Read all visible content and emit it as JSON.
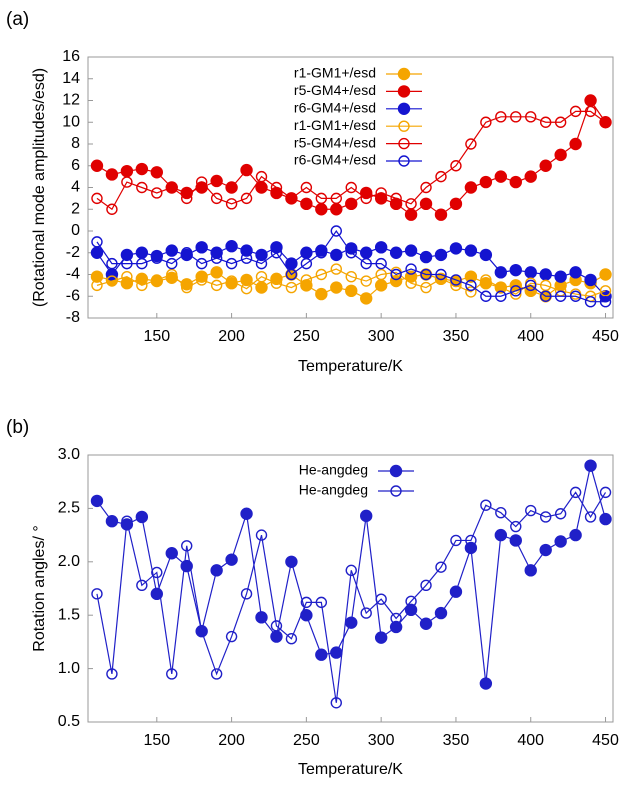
{
  "chart_data": [
    {
      "type": "line",
      "label": "(a)",
      "x_label": "Temperature/K",
      "y_label": "(Rotational mode amplitudes/esd)",
      "xlim": [
        104,
        455
      ],
      "ylim": [
        -8,
        16
      ],
      "xticks": [
        150,
        200,
        250,
        300,
        350,
        400,
        450
      ],
      "yticks": [
        -8,
        -6,
        -4,
        -2,
        0,
        2,
        4,
        6,
        8,
        10,
        12,
        14,
        16
      ],
      "grid": false,
      "legend": "top",
      "x": [
        110,
        120,
        130,
        140,
        150,
        160,
        170,
        180,
        190,
        200,
        210,
        220,
        230,
        240,
        250,
        260,
        270,
        280,
        290,
        300,
        310,
        320,
        330,
        340,
        350,
        360,
        370,
        380,
        390,
        400,
        410,
        420,
        430,
        440,
        450
      ],
      "series": [
        {
          "name": "r1-GM1+/esd",
          "color": "#f5a500",
          "marker": "filled",
          "values": [
            -4.2,
            -4.5,
            -4.8,
            -4.4,
            -4.6,
            -4.3,
            -4.9,
            -4.2,
            -3.8,
            -4.8,
            -4.5,
            -5.2,
            -4.4,
            -4.0,
            -5.0,
            -5.8,
            -5.2,
            -5.5,
            -6.2,
            -5.0,
            -4.6,
            -4.2,
            -4.0,
            -4.4,
            -4.6,
            -4.2,
            -4.8,
            -5.2,
            -5.0,
            -5.5,
            -6.0,
            -5.0,
            -4.5,
            -4.8,
            -4.0
          ]
        },
        {
          "name": "r5-GM4+/esd",
          "color": "#e00000",
          "marker": "filled",
          "values": [
            6.0,
            5.2,
            5.5,
            5.7,
            5.4,
            4.0,
            3.5,
            4.0,
            4.6,
            4.0,
            5.6,
            4.0,
            3.5,
            3.0,
            2.5,
            2.0,
            2.0,
            2.5,
            3.5,
            3.0,
            2.5,
            1.5,
            2.5,
            1.5,
            2.5,
            4.0,
            4.5,
            5.0,
            4.5,
            5.0,
            6.0,
            7.0,
            8.0,
            12.0,
            10.0
          ]
        },
        {
          "name": "r6-GM4+/esd",
          "color": "#1414d0",
          "marker": "filled",
          "values": [
            -2.0,
            -4.0,
            -2.2,
            -2.0,
            -2.3,
            -1.8,
            -2.2,
            -1.5,
            -2.0,
            -1.4,
            -1.8,
            -2.2,
            -1.5,
            -3.0,
            -2.0,
            -1.8,
            -2.2,
            -1.6,
            -2.0,
            -1.5,
            -2.0,
            -1.8,
            -2.4,
            -2.2,
            -1.6,
            -1.8,
            -2.2,
            -3.8,
            -3.6,
            -3.8,
            -4.0,
            -4.2,
            -3.8,
            -4.5,
            -6.0
          ]
        },
        {
          "name": "r1-GM1+/esd",
          "color": "#f5a500",
          "marker": "open",
          "values": [
            -5.0,
            -4.6,
            -4.2,
            -5.0,
            -4.5,
            -4.0,
            -5.2,
            -4.5,
            -5.0,
            -4.6,
            -5.3,
            -4.2,
            -4.8,
            -5.2,
            -4.5,
            -4.0,
            -3.5,
            -4.2,
            -4.6,
            -4.0,
            -3.8,
            -4.8,
            -5.2,
            -4.4,
            -5.0,
            -5.6,
            -4.5,
            -5.2,
            -5.8,
            -4.8,
            -5.0,
            -5.5,
            -5.8,
            -6.0,
            -5.5
          ]
        },
        {
          "name": "r5-GM4+/esd",
          "color": "#e00000",
          "marker": "open",
          "values": [
            3.0,
            2.0,
            4.5,
            4.0,
            3.5,
            4.0,
            3.0,
            4.5,
            3.0,
            2.5,
            3.0,
            5.0,
            4.0,
            3.0,
            4.0,
            3.0,
            3.0,
            4.0,
            3.0,
            3.5,
            3.0,
            2.5,
            4.0,
            5.0,
            6.0,
            8.0,
            10.0,
            10.5,
            10.5,
            10.5,
            10.0,
            10.0,
            11.0,
            11.0,
            10.0
          ]
        },
        {
          "name": "r6-GM4+/esd",
          "color": "#1414d0",
          "marker": "open",
          "values": [
            -1.0,
            -3.0,
            -3.0,
            -3.0,
            -2.5,
            -3.0,
            -2.0,
            -3.0,
            -2.5,
            -3.0,
            -2.5,
            -3.0,
            -2.0,
            -4.0,
            -3.0,
            -2.0,
            0.0,
            -2.0,
            -3.0,
            -3.0,
            -4.0,
            -3.5,
            -4.0,
            -4.0,
            -4.5,
            -5.0,
            -6.0,
            -6.0,
            -5.5,
            -5.0,
            -6.0,
            -6.0,
            -6.0,
            -6.5,
            -6.5
          ]
        }
      ]
    },
    {
      "type": "line",
      "label": "(b)",
      "x_label": "Temperature/K",
      "y_label": "Rotation angles/ °",
      "xlim": [
        104,
        455
      ],
      "ylim": [
        0.5,
        3.0
      ],
      "xticks": [
        150,
        200,
        250,
        300,
        350,
        400,
        450
      ],
      "yticks": [
        0.5,
        {
          "value": 1.0,
          "label": "1.0"
        },
        1.5,
        {
          "value": 2.0,
          "label": "2.0"
        },
        2.5,
        {
          "value": 3.0,
          "label": "3.0"
        }
      ],
      "grid": false,
      "legend": "top",
      "x": [
        110,
        120,
        130,
        140,
        150,
        160,
        170,
        180,
        190,
        200,
        210,
        220,
        230,
        240,
        250,
        260,
        270,
        280,
        290,
        300,
        310,
        320,
        330,
        340,
        350,
        360,
        370,
        380,
        390,
        400,
        410,
        420,
        430,
        440,
        450
      ],
      "series": [
        {
          "name": "He-angdeg",
          "color": "#2020c8",
          "marker": "filled",
          "values": [
            2.57,
            2.38,
            2.35,
            2.42,
            1.7,
            2.08,
            1.96,
            1.35,
            1.92,
            2.02,
            2.45,
            1.48,
            1.3,
            2.0,
            1.5,
            1.13,
            1.15,
            1.43,
            2.43,
            1.29,
            1.39,
            1.55,
            1.42,
            1.52,
            1.72,
            2.13,
            0.86,
            2.25,
            2.2,
            1.92,
            2.11,
            2.19,
            2.25,
            2.9,
            2.4
          ]
        },
        {
          "name": "He-angdeg",
          "color": "#2020c8",
          "marker": "open",
          "values": [
            1.7,
            0.95,
            2.38,
            1.78,
            1.9,
            0.95,
            2.15,
            1.35,
            0.95,
            1.3,
            1.7,
            2.25,
            1.4,
            1.28,
            1.62,
            1.62,
            0.68,
            1.92,
            1.52,
            1.65,
            1.47,
            1.63,
            1.78,
            1.95,
            2.2,
            2.2,
            2.53,
            2.46,
            2.33,
            2.48,
            2.42,
            2.45,
            2.65,
            2.42,
            2.65
          ]
        }
      ]
    }
  ]
}
